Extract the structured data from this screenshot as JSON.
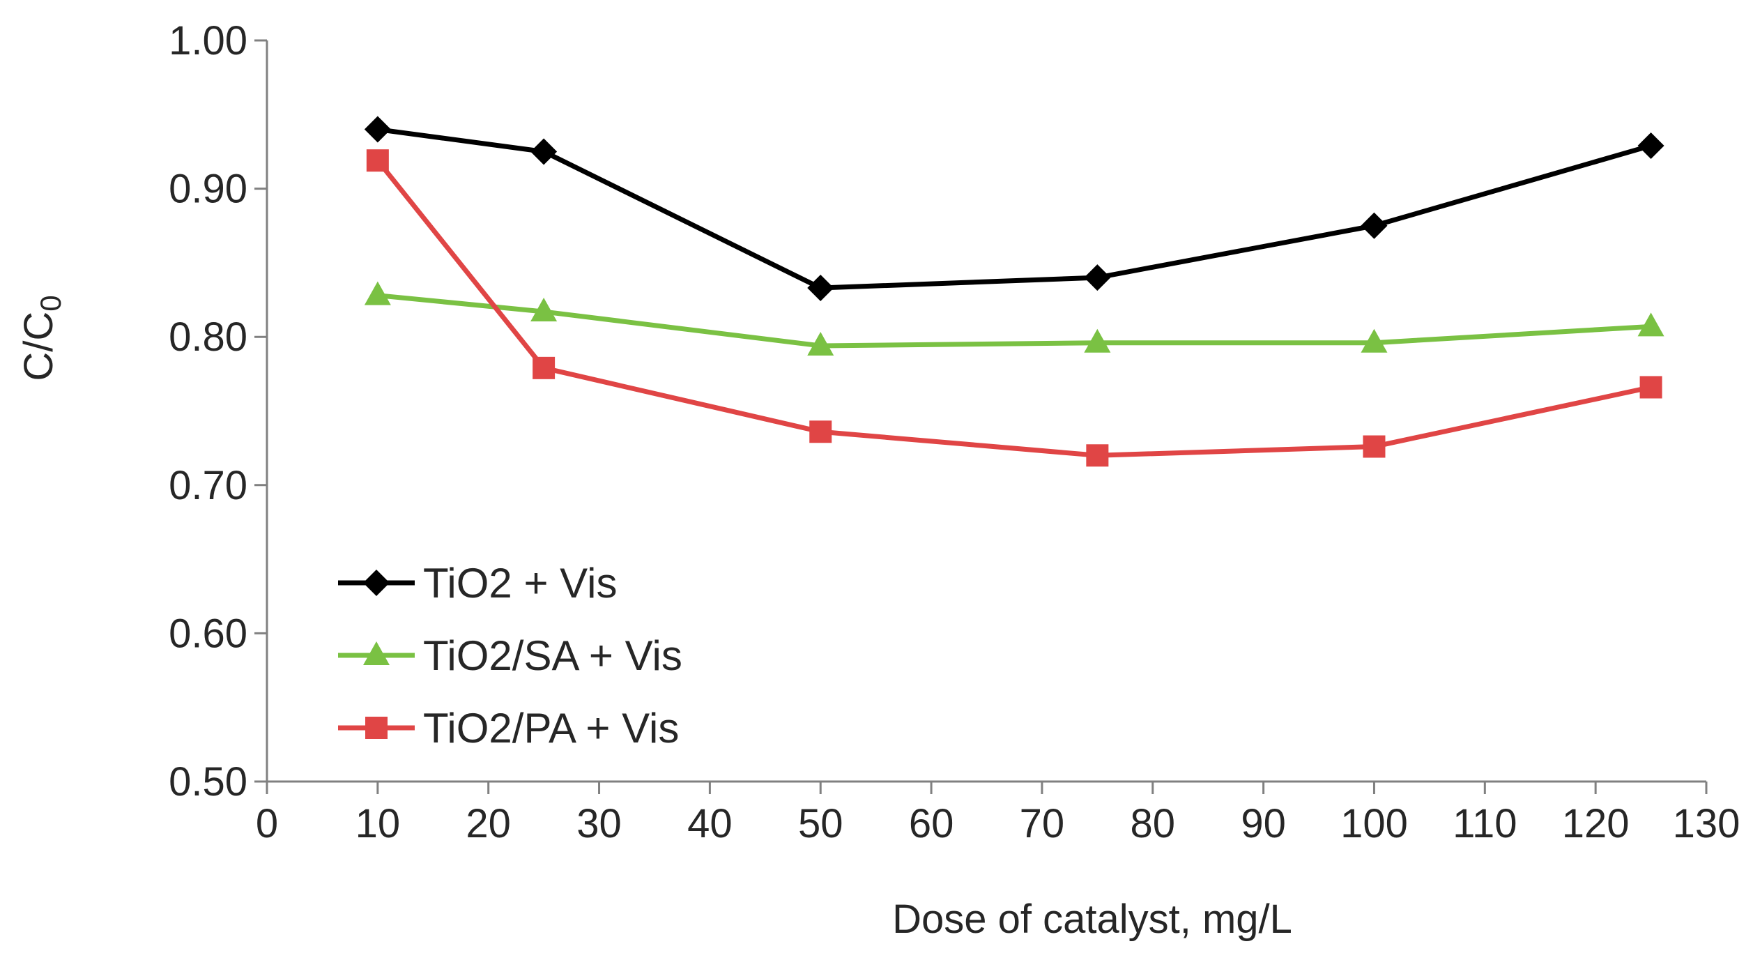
{
  "chart_data": {
    "type": "line",
    "title": "",
    "xlabel": "Dose of catalyst, mg/L",
    "ylabel_main": "C/C",
    "ylabel_sub": "0",
    "xlim": [
      0,
      130
    ],
    "ylim": [
      0.5,
      1.0
    ],
    "xticks": [
      0,
      10,
      20,
      30,
      40,
      50,
      60,
      70,
      80,
      90,
      100,
      110,
      120,
      130
    ],
    "yticks": [
      0.5,
      0.6,
      0.7,
      0.8,
      0.9,
      1.0
    ],
    "ytick_labels": [
      "0.50",
      "0.60",
      "0.70",
      "0.80",
      "0.90",
      "1.00"
    ],
    "grid": false,
    "legend_position": "lower-left",
    "x": [
      10,
      25,
      50,
      75,
      100,
      125
    ],
    "series": [
      {
        "name": "TiO2 + Vis",
        "color": "#000000",
        "marker": "diamond",
        "values": [
          0.94,
          0.925,
          0.833,
          0.84,
          0.875,
          0.929
        ]
      },
      {
        "name": "TiO2/SA + Vis",
        "color": "#7ac143",
        "marker": "triangle",
        "values": [
          0.828,
          0.817,
          0.794,
          0.796,
          0.796,
          0.807
        ]
      },
      {
        "name": "TiO2/PA + Vis",
        "color": "#e04545",
        "marker": "square",
        "values": [
          0.919,
          0.779,
          0.736,
          0.72,
          0.726,
          0.766
        ]
      }
    ]
  }
}
